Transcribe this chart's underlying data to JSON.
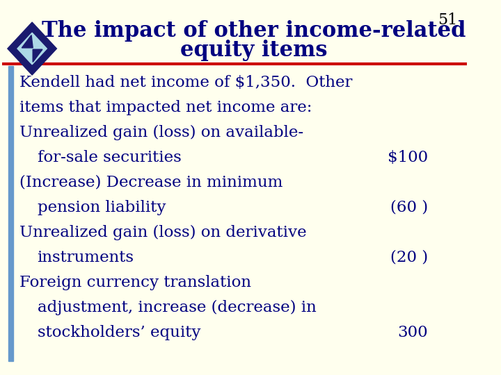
{
  "title_line1": "The impact of other income-related",
  "title_line2": "equity items",
  "slide_number": "51",
  "background_color": "#FFFFEE",
  "header_bg_color": "#FFFFEE",
  "title_color": "#000080",
  "text_color": "#000080",
  "red_line_color": "#CC0000",
  "blue_bar_color": "#4472C4",
  "body_lines": [
    {
      "text": "Kendell had net income of $1,350.  Other",
      "indent": 0,
      "value": ""
    },
    {
      "text": "items that impacted net income are:",
      "indent": 0,
      "value": ""
    },
    {
      "text": "Unrealized gain (loss) on available-",
      "indent": 1,
      "value": ""
    },
    {
      "text": "for-sale securities",
      "indent": 2,
      "value": "$100"
    },
    {
      "text": "(Increase) Decrease in minimum",
      "indent": 1,
      "value": ""
    },
    {
      "text": "pension liability",
      "indent": 2,
      "value": "(60 )"
    },
    {
      "text": "Unrealized gain (loss) on derivative",
      "indent": 1,
      "value": ""
    },
    {
      "text": "instruments",
      "indent": 2,
      "value": "(20 )"
    },
    {
      "text": "Foreign currency translation",
      "indent": 1,
      "value": ""
    },
    {
      "text": "adjustment, increase (decrease) in",
      "indent": 2,
      "value": ""
    },
    {
      "text": "stockholders’ equity",
      "indent": 2,
      "value": "300"
    }
  ],
  "title_fontsize": 22,
  "body_fontsize": 16.5,
  "slide_num_fontsize": 16
}
